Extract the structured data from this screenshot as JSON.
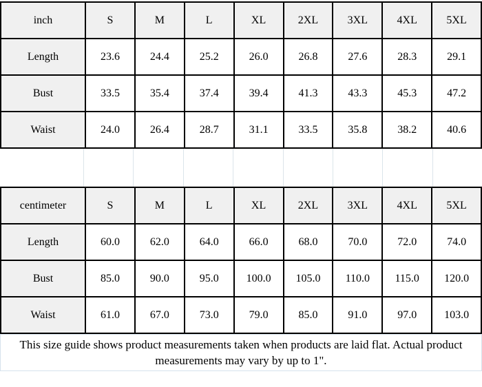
{
  "colors": {
    "grid_border": "#000000",
    "header_bg": "#f0f0f0",
    "faint_line": "#dbe4ea",
    "note_border": "#d6e2ec"
  },
  "tables": [
    {
      "unit_label": "inch",
      "sizes": [
        "S",
        "M",
        "L",
        "XL",
        "2XL",
        "3XL",
        "4XL",
        "5XL"
      ],
      "rows": [
        {
          "label": "Length",
          "values": [
            "23.6",
            "24.4",
            "25.2",
            "26.0",
            "26.8",
            "27.6",
            "28.3",
            "29.1"
          ]
        },
        {
          "label": "Bust",
          "values": [
            "33.5",
            "35.4",
            "37.4",
            "39.4",
            "41.3",
            "43.3",
            "45.3",
            "47.2"
          ]
        },
        {
          "label": "Waist",
          "values": [
            "24.0",
            "26.4",
            "28.7",
            "31.1",
            "33.5",
            "35.8",
            "38.2",
            "40.6"
          ]
        }
      ]
    },
    {
      "unit_label": "centimeter",
      "sizes": [
        "S",
        "M",
        "L",
        "XL",
        "2XL",
        "3XL",
        "4XL",
        "5XL"
      ],
      "rows": [
        {
          "label": "Length",
          "values": [
            "60.0",
            "62.0",
            "64.0",
            "66.0",
            "68.0",
            "70.0",
            "72.0",
            "74.0"
          ]
        },
        {
          "label": "Bust",
          "values": [
            "85.0",
            "90.0",
            "95.0",
            "100.0",
            "105.0",
            "110.0",
            "115.0",
            "120.0"
          ]
        },
        {
          "label": "Waist",
          "values": [
            "61.0",
            "67.0",
            "73.0",
            "79.0",
            "85.0",
            "91.0",
            "97.0",
            "103.0"
          ]
        }
      ]
    }
  ],
  "footer": {
    "line1": "This size guide shows product measurements taken when products are laid flat. Actual product",
    "line2": "measurements may vary by up to 1\"."
  }
}
